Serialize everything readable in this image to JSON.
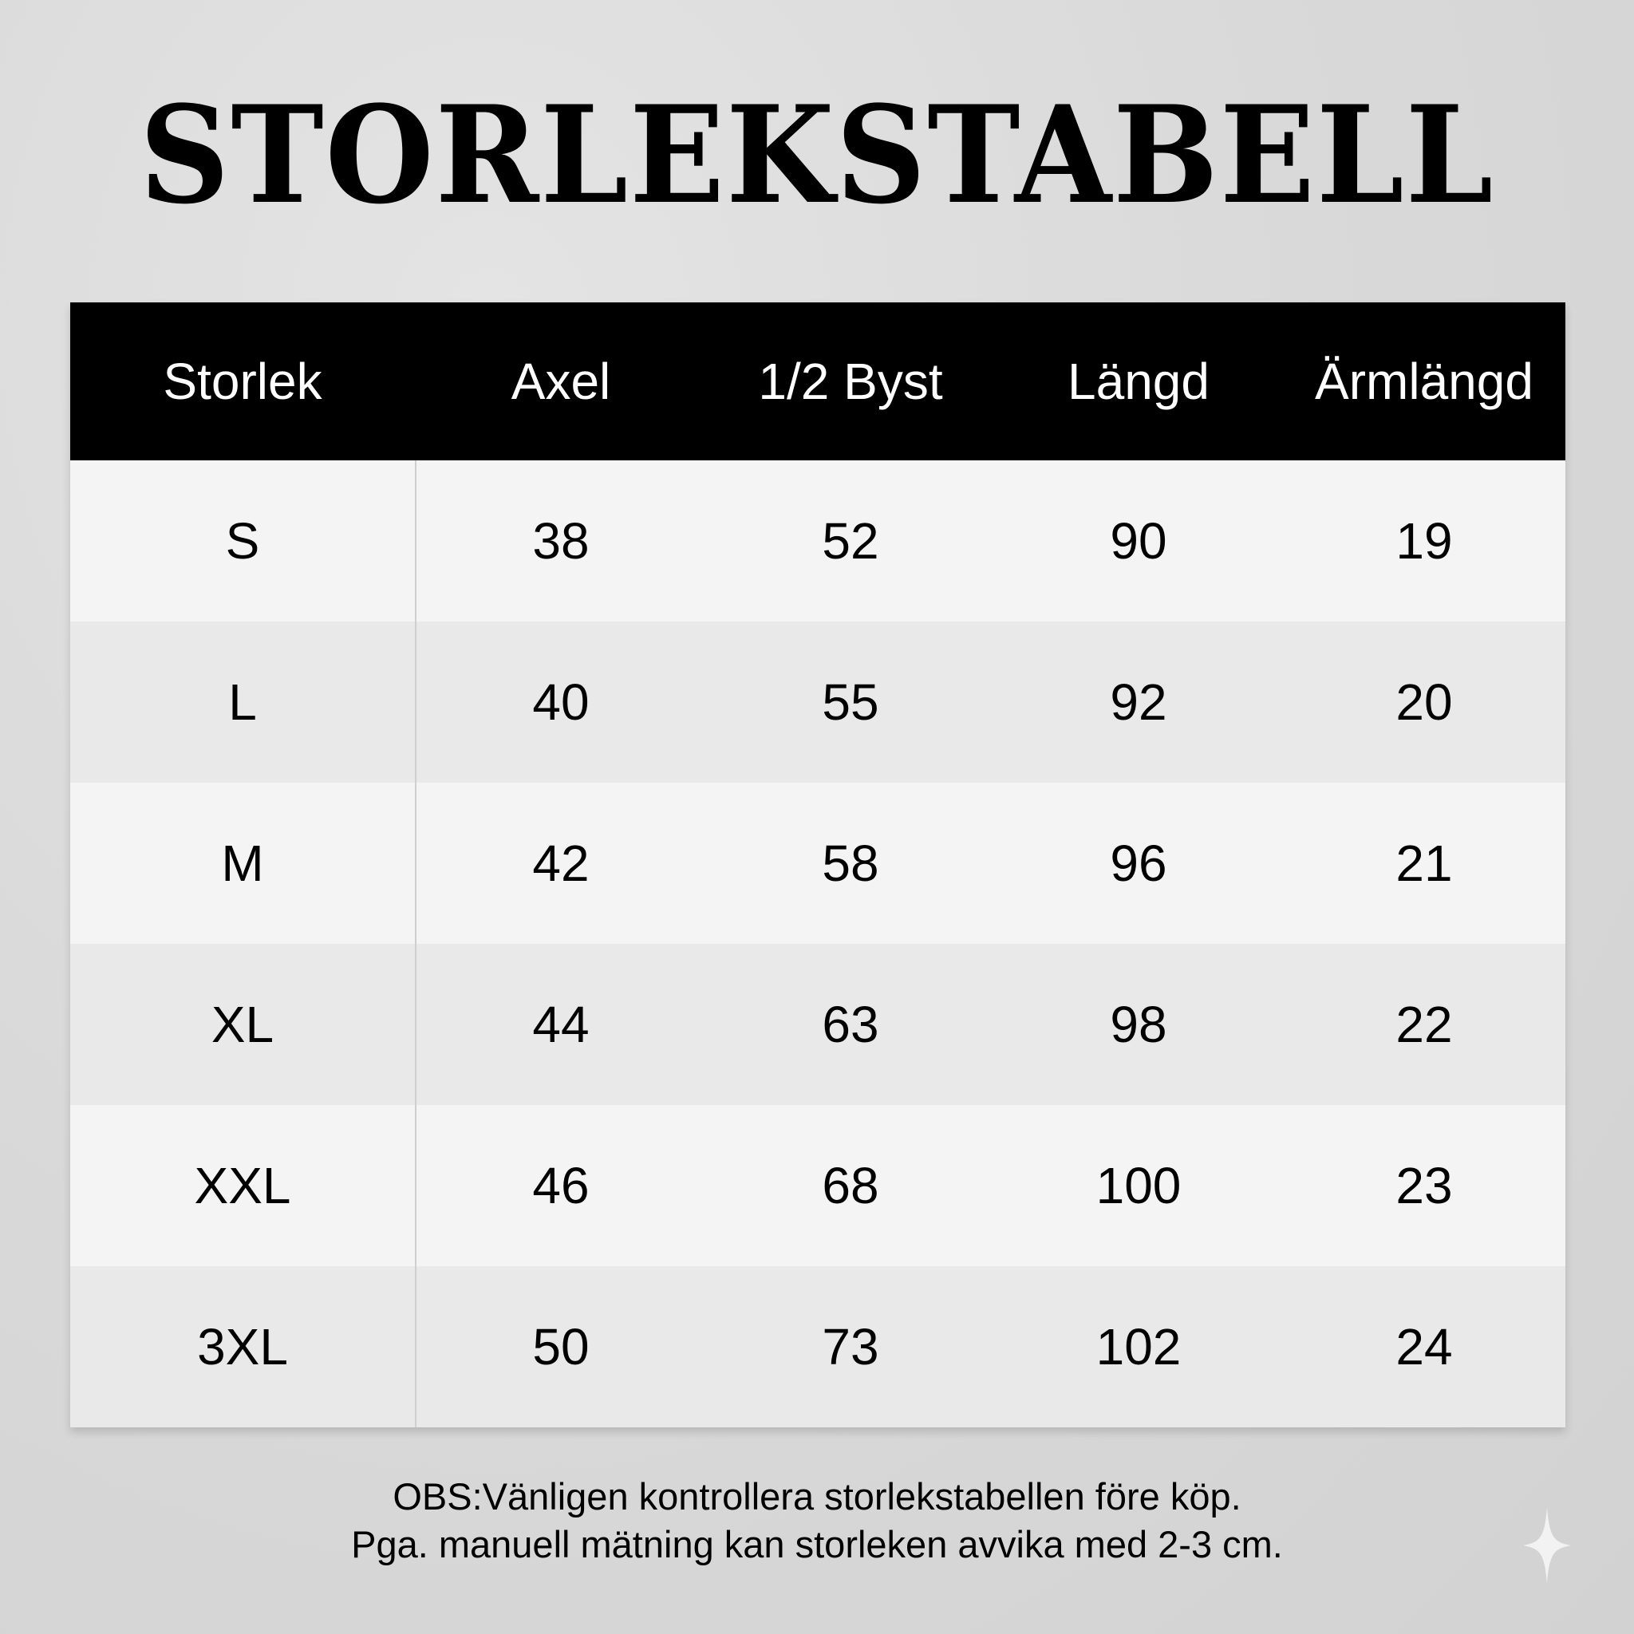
{
  "title": "STORLEKSTABELL",
  "table": {
    "headers": [
      "Storlek",
      "Axel",
      "1/2 Byst",
      "Längd",
      "Ärmlängd"
    ],
    "rows": [
      [
        "S",
        "38",
        "52",
        "90",
        "19"
      ],
      [
        "L",
        "40",
        "55",
        "92",
        "20"
      ],
      [
        "M",
        "42",
        "58",
        "96",
        "21"
      ],
      [
        "XL",
        "44",
        "63",
        "98",
        "22"
      ],
      [
        "XXL",
        "46",
        "68",
        "100",
        "23"
      ],
      [
        "3XL",
        "50",
        "73",
        "102",
        "24"
      ]
    ]
  },
  "note": {
    "line1": "OBS:Vänligen kontrollera storlekstabellen före köp.",
    "line2": "Pga. manuell mätning kan storleken avvika med 2-3 cm."
  },
  "icons": {
    "watermark": "sparkle-icon"
  },
  "colors": {
    "header_bg": "#000000",
    "header_text": "#ffffff",
    "row_light": "#f4f4f4",
    "row_dark": "#e9e9e9"
  }
}
